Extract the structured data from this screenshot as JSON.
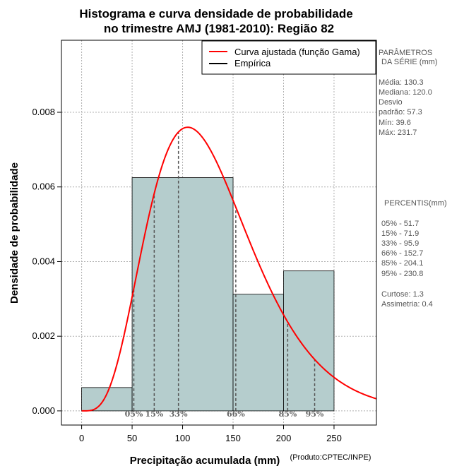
{
  "chart_data": {
    "type": "bar",
    "title_lines": [
      "Histograma e curva densidade de probabilidade",
      "no trimestre AMJ (1981-2010): Região 82"
    ],
    "xlabel": "Precipitação acumulada (mm)",
    "ylabel": "Densidade de probabilidade",
    "credit": "(Produto:CPTEC/INPE)",
    "xlim": [
      -20,
      292
    ],
    "ylim": [
      -0.00038,
      0.00993
    ],
    "x_ticks": [
      0,
      50,
      100,
      150,
      200,
      250
    ],
    "x_tick_labels": [
      "0",
      "50",
      "100",
      "150",
      "200",
      "250"
    ],
    "y_ticks": [
      0,
      0.002,
      0.004,
      0.006,
      0.008
    ],
    "y_tick_labels": [
      "0.000",
      "0.002",
      "0.004",
      "0.006",
      "0.008"
    ],
    "histogram": {
      "name": "Empírica",
      "bins": [
        {
          "start": 0,
          "end": 50,
          "density": 0.000625
        },
        {
          "start": 50,
          "end": 150,
          "density": 0.00625
        },
        {
          "start": 150,
          "end": 200,
          "density": 0.003125
        },
        {
          "start": 200,
          "end": 250,
          "density": 0.00375
        }
      ],
      "fill_color": "#b5cdcd"
    },
    "gamma_fit": {
      "name": "Curva ajustada (função Gama)",
      "color": "#ff0000",
      "mean": 130.3,
      "sd": 57.3
    },
    "percentile_lines": [
      {
        "label": "05%",
        "value": 51.7
      },
      {
        "label": "15%",
        "value": 71.9
      },
      {
        "label": "33%",
        "value": 95.9
      },
      {
        "label": "66%",
        "value": 152.7
      },
      {
        "label": "85%",
        "value": 204.1
      },
      {
        "label": "95%",
        "value": 230.8
      }
    ],
    "legend": {
      "position": "top-right",
      "entries": [
        {
          "label": "Curva ajustada (função Gama)",
          "color": "#ff0000"
        },
        {
          "label": "Empírica",
          "color": "#000000"
        }
      ]
    },
    "grid": true
  },
  "side_panel": {
    "params_title": [
      "PARÂMETROS",
      "DA SÉRIE (mm)"
    ],
    "stats": [
      "Média:  130.3",
      "Mediana:  120.0",
      "Desvio",
      "padrão:  57.3",
      "Mín:  39.6",
      "Máx:  231.7"
    ],
    "percentis_title": "PERCENTIS(mm)",
    "percentis": [
      "05% -   51.7",
      "15% -   71.9",
      "33% -   95.9",
      "66% -   152.7",
      "85% -   204.1",
      "95% -   230.8"
    ],
    "shape_stats": [
      "Curtose:  1.3",
      "Assimetria:  0.4"
    ]
  }
}
